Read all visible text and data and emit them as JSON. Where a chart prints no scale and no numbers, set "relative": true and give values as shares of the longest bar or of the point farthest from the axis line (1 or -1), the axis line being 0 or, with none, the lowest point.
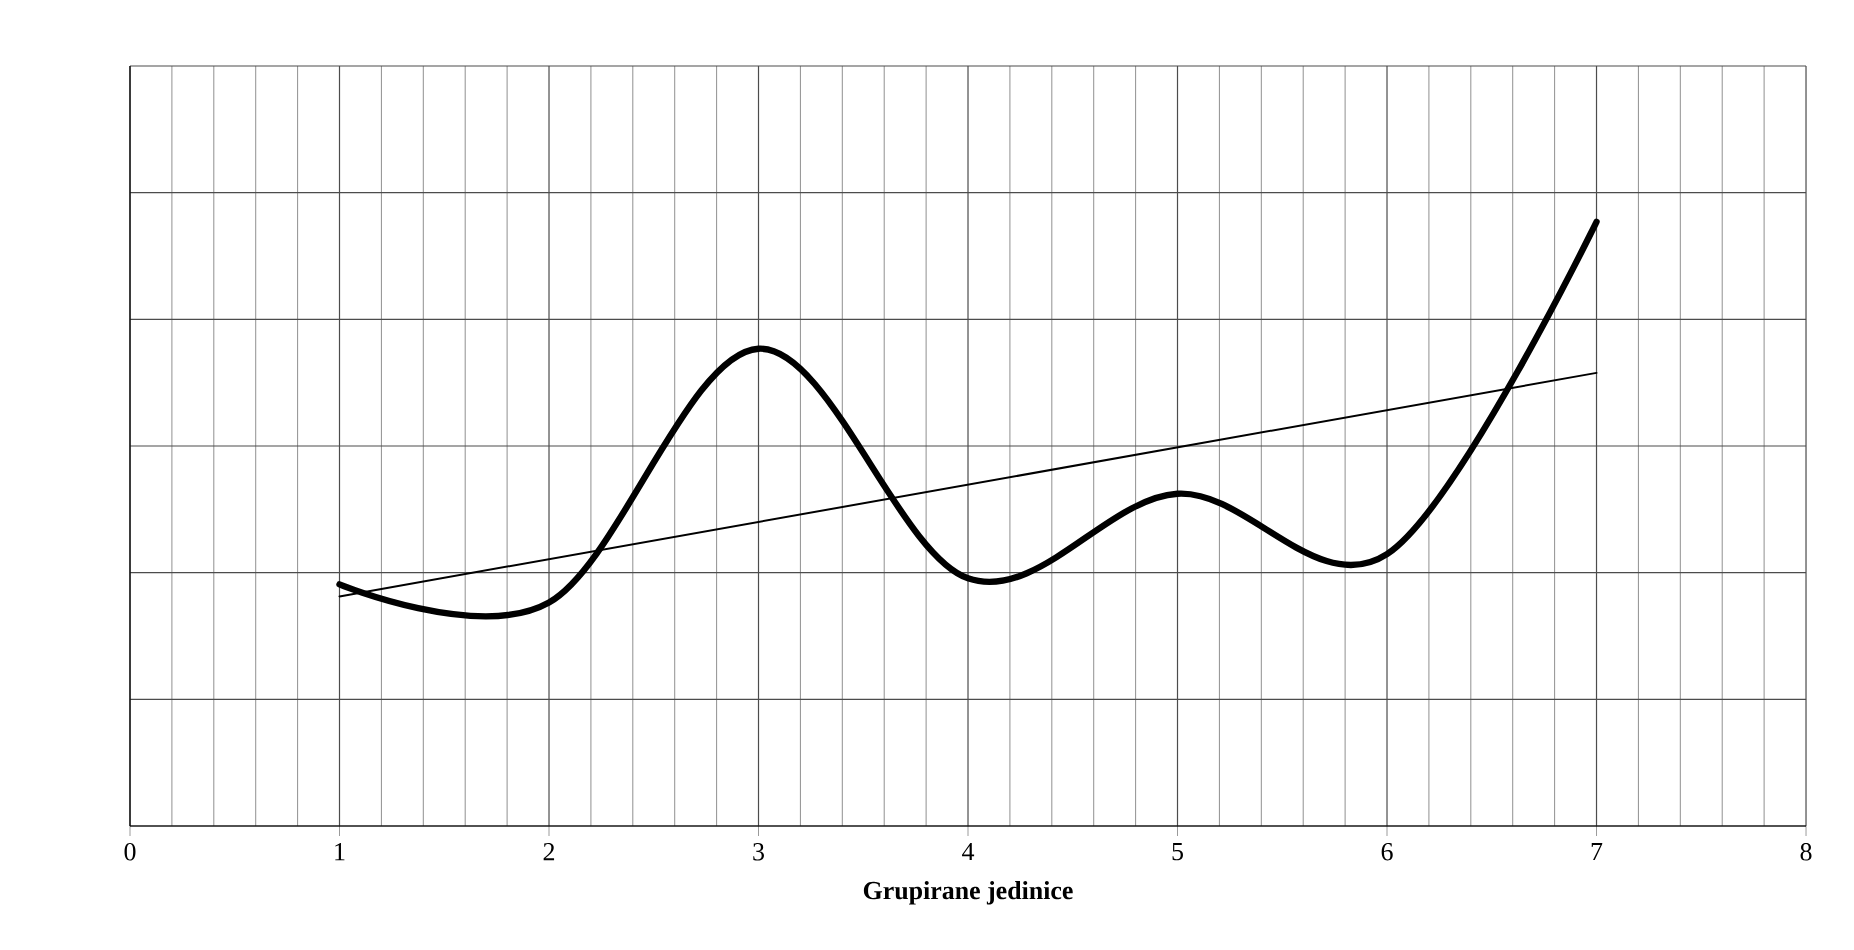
{
  "chart_data": {
    "type": "line",
    "xlabel": "Grupirane jedinice",
    "relative": true,
    "grid": true,
    "tick_labels": "x",
    "marker": "none",
    "xlim": [
      0,
      8
    ],
    "xticks": [
      0,
      1,
      2,
      3,
      4,
      5,
      6,
      7,
      8
    ],
    "series": [
      {
        "color": "#000000",
        "x": [
          1,
          2,
          3,
          4,
          5,
          6,
          7
        ],
        "values": [
          0.4,
          0.37,
          0.79,
          0.41,
          0.55,
          0.45,
          1.0
        ]
      },
      {
        "type": "line",
        "color": "#000000",
        "x": [
          1,
          7
        ],
        "values": [
          0.38,
          0.75
        ]
      }
    ]
  }
}
